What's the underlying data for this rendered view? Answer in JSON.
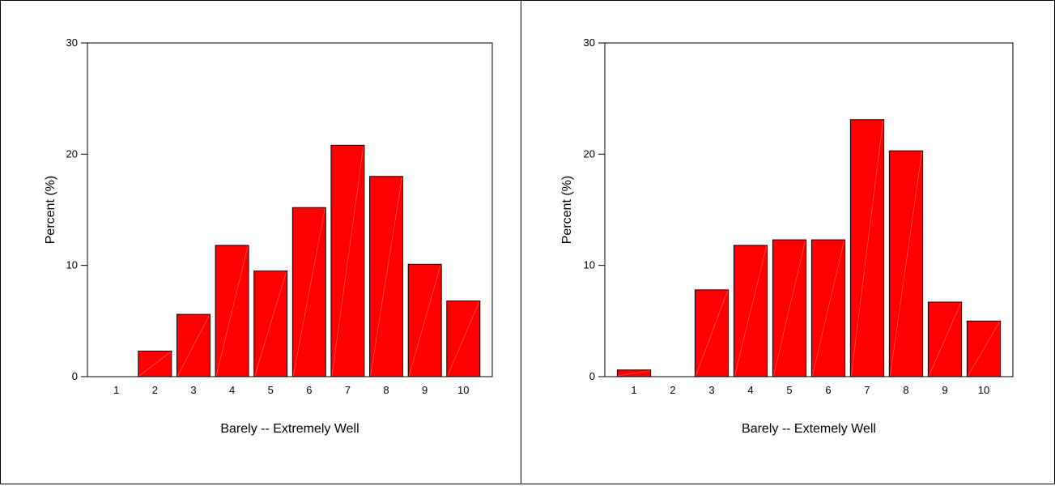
{
  "colors": {
    "bar_fill": "#ff0000",
    "bar_stroke": "#000000",
    "bar_highlight": "#ff6a6a"
  },
  "chart_data": [
    {
      "type": "bar",
      "title": "",
      "xlabel": "Barely  -- Extremely Well",
      "ylabel": "Percent (%)",
      "ylim": [
        0,
        30
      ],
      "yticks": [
        "0",
        "10",
        "20",
        "30"
      ],
      "categories": [
        "1",
        "2",
        "3",
        "4",
        "5",
        "6",
        "7",
        "8",
        "9",
        "10"
      ],
      "values": [
        0.0,
        2.3,
        5.6,
        11.8,
        9.5,
        15.2,
        20.8,
        18.0,
        10.1,
        6.8
      ],
      "grid": false,
      "legend": "none"
    },
    {
      "type": "bar",
      "title": "",
      "xlabel": "Barely -- Extemely Well",
      "ylabel": "Percent (%)",
      "ylim": [
        0,
        30
      ],
      "yticks": [
        "0",
        "10",
        "20",
        "30"
      ],
      "categories": [
        "1",
        "2",
        "3",
        "4",
        "5",
        "6",
        "7",
        "8",
        "9",
        "10"
      ],
      "values": [
        0.6,
        0.0,
        7.8,
        11.8,
        12.3,
        12.3,
        23.1,
        20.3,
        6.7,
        5.0
      ],
      "grid": false,
      "legend": "none"
    }
  ]
}
